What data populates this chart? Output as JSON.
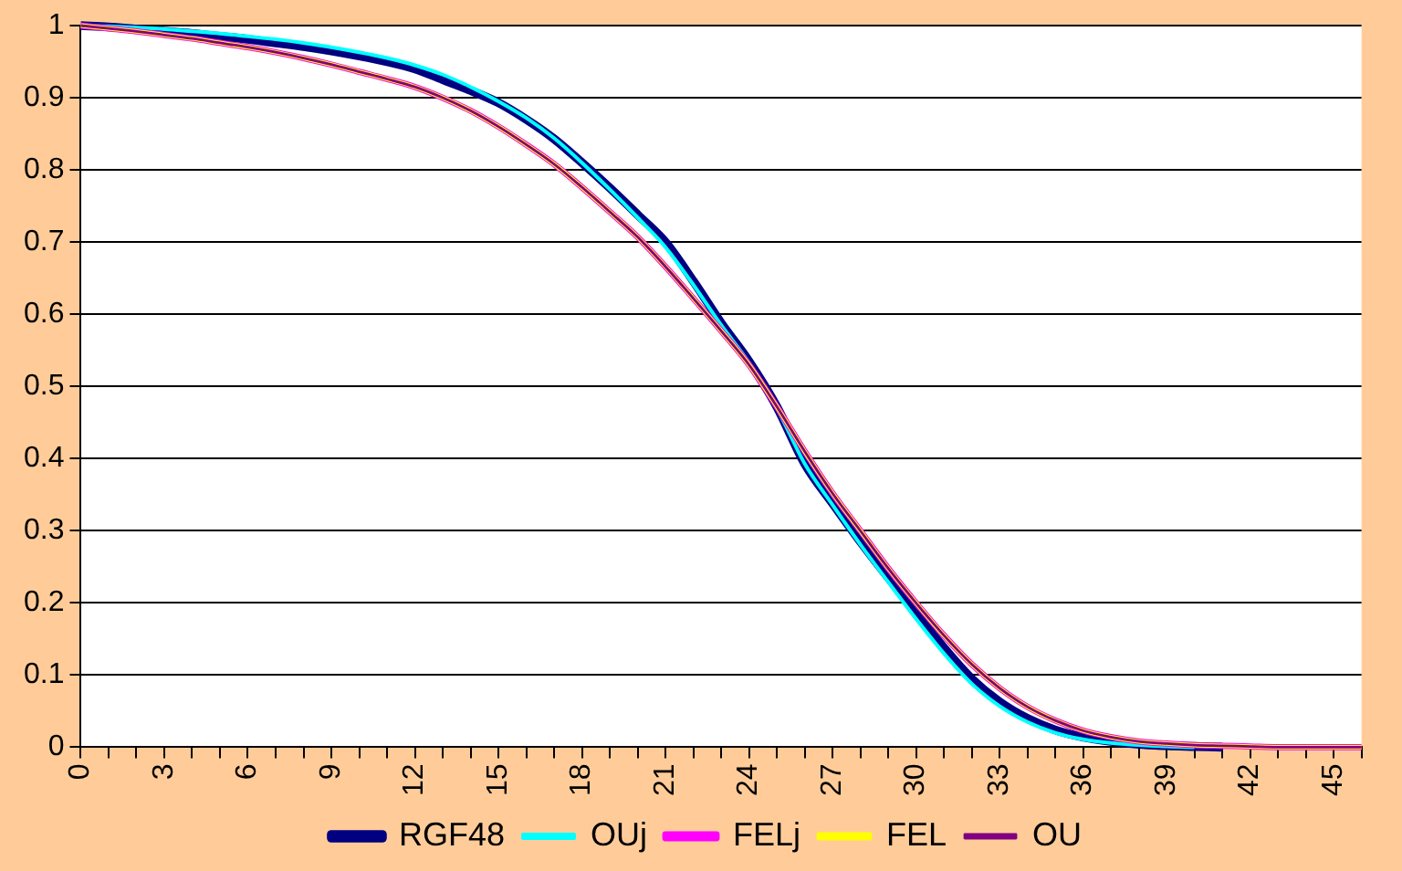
{
  "chart_data": {
    "type": "line",
    "categories": [
      "0",
      null,
      null,
      "3",
      null,
      null,
      "6",
      null,
      null,
      "9",
      null,
      null,
      "12",
      null,
      null,
      "15",
      null,
      null,
      "18",
      null,
      null,
      "21",
      null,
      null,
      "24",
      null,
      null,
      "27",
      null,
      null,
      "30",
      null,
      null,
      "33",
      null,
      null,
      "36",
      null,
      null,
      "39",
      null,
      null,
      "42",
      null,
      null,
      "45",
      null
    ],
    "series": [
      {
        "name": "RGF48",
        "color": "#000080",
        "values": [
          1,
          0.998,
          0.995,
          0.992,
          0.989,
          0.985,
          0.981,
          0.976,
          0.971,
          0.965,
          0.958,
          0.95,
          0.94,
          0.925,
          0.91,
          0.893,
          0.87,
          0.843,
          0.81,
          0.775,
          0.738,
          0.7,
          0.646,
          0.588,
          0.535,
          0.472,
          0.393,
          0.338,
          0.285,
          0.235,
          0.186,
          0.138,
          0.095,
          0.063,
          0.04,
          0.024,
          0.014,
          0.008,
          0.004,
          0.002,
          0.001,
          0,
          null,
          null,
          null,
          null,
          null
        ]
      },
      {
        "name": "OUj",
        "color": "#00ffff",
        "values": [
          1,
          0.999,
          0.997,
          0.995,
          0.992,
          0.989,
          0.985,
          0.981,
          0.976,
          0.97,
          0.963,
          0.955,
          0.945,
          0.932,
          0.915,
          0.895,
          0.872,
          0.844,
          0.81,
          0.773,
          0.734,
          0.693,
          0.641,
          0.585,
          0.533,
          0.47,
          0.393,
          0.336,
          0.281,
          0.229,
          0.178,
          0.13,
          0.088,
          0.057,
          0.035,
          0.02,
          0.011,
          0.006,
          0.003,
          0.001,
          0,
          null,
          null,
          null,
          null,
          null,
          null
        ]
      },
      {
        "name": "FELj",
        "color": "#ff00ff",
        "values": [
          1,
          0.996,
          0.992,
          0.987,
          0.982,
          0.976,
          0.97,
          0.963,
          0.955,
          0.946,
          0.936,
          0.926,
          0.915,
          0.9,
          0.882,
          0.86,
          0.835,
          0.808,
          0.776,
          0.742,
          0.707,
          0.666,
          0.622,
          0.577,
          0.53,
          0.472,
          0.41,
          0.352,
          0.3,
          0.248,
          0.2,
          0.155,
          0.115,
          0.082,
          0.056,
          0.037,
          0.023,
          0.014,
          0.008,
          0.005,
          0.003,
          0.002,
          0.001,
          0,
          0,
          0,
          0
        ]
      },
      {
        "name": "FEL",
        "color": "#ffff00",
        "values": [
          1,
          0.996,
          0.992,
          0.987,
          0.982,
          0.976,
          0.97,
          0.963,
          0.955,
          0.946,
          0.936,
          0.926,
          0.915,
          0.9,
          0.882,
          0.86,
          0.835,
          0.808,
          0.776,
          0.742,
          0.707,
          0.666,
          0.622,
          0.577,
          0.53,
          0.472,
          0.41,
          0.352,
          0.3,
          0.248,
          0.2,
          0.155,
          0.115,
          0.082,
          0.056,
          0.037,
          0.023,
          0.014,
          0.008,
          0.005,
          0.003,
          0.002,
          0.001,
          0,
          0,
          0,
          0
        ]
      },
      {
        "name": "OU",
        "color": "#800080",
        "values": [
          1,
          0.996,
          0.992,
          0.987,
          0.982,
          0.976,
          0.97,
          0.963,
          0.955,
          0.946,
          0.936,
          0.926,
          0.915,
          0.9,
          0.882,
          0.86,
          0.835,
          0.808,
          0.776,
          0.742,
          0.707,
          0.666,
          0.622,
          0.577,
          0.53,
          0.472,
          0.41,
          0.352,
          0.3,
          0.248,
          0.2,
          0.155,
          0.115,
          0.082,
          0.056,
          0.037,
          0.023,
          0.014,
          0.008,
          0.005,
          0.003,
          0.002,
          0.001,
          0,
          0,
          0,
          0
        ]
      }
    ],
    "ylim": [
      0,
      1
    ],
    "yticks": [
      0,
      0.1,
      0.2,
      0.3,
      0.4,
      0.5,
      0.6,
      0.7,
      0.8,
      0.9,
      1
    ],
    "grid": "y",
    "legend": "bottom",
    "marker": "none",
    "line_style": "solid"
  }
}
